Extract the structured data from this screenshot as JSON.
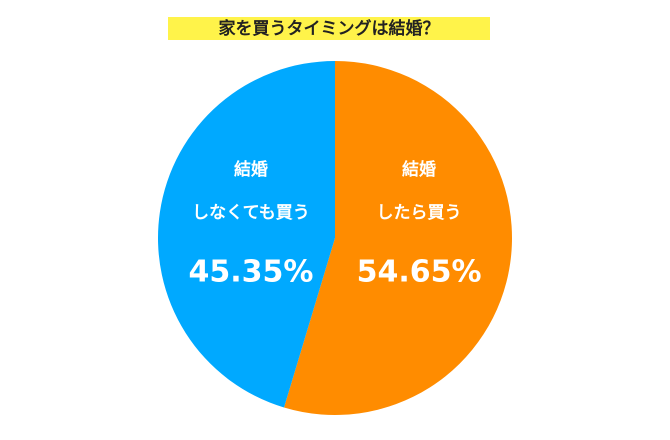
{
  "chart_data": {
    "type": "pie",
    "title": "家を買うタイミングは結婚？",
    "categories": [
      [
        "結婚",
        "したら買う"
      ],
      [
        "結婚",
        "しなくても買う"
      ]
    ],
    "values": [
      54.65,
      45.35
    ],
    "value_labels": [
      "54.65%",
      "45.35%"
    ],
    "colors": [
      "#ff8c00",
      "#00a9ff"
    ]
  }
}
